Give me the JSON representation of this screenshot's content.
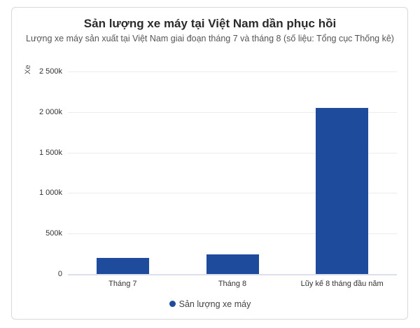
{
  "chart_data": {
    "type": "bar",
    "title": "Sản lượng xe máy tại Việt Nam dần phục hồi",
    "subtitle": "Lượng xe máy sản xuất tại Việt Nam giai đoạn tháng 7 và tháng 8 (số liệu: Tổng cục Thống kê)",
    "xlabel": "",
    "ylabel": "Xe",
    "categories": [
      "Tháng 7",
      "Tháng 8",
      "Lũy kế 8 tháng đầu năm"
    ],
    "series": [
      {
        "name": "Sản lượng xe máy",
        "color": "#1e4b9b",
        "values": [
          200000,
          245000,
          2050000
        ]
      }
    ],
    "ylim": [
      0,
      2500000
    ],
    "yticks": [
      0,
      500000,
      1000000,
      1500000,
      2000000,
      2500000
    ],
    "ytick_labels": [
      "0",
      "500k",
      "1 000k",
      "1 500k",
      "2 000k",
      "2 500k"
    ],
    "grid": true,
    "legend_position": "bottom"
  },
  "colors": {
    "bar": "#1e4b9b",
    "grid": "#ececec",
    "card_border": "#d9d9d9"
  }
}
